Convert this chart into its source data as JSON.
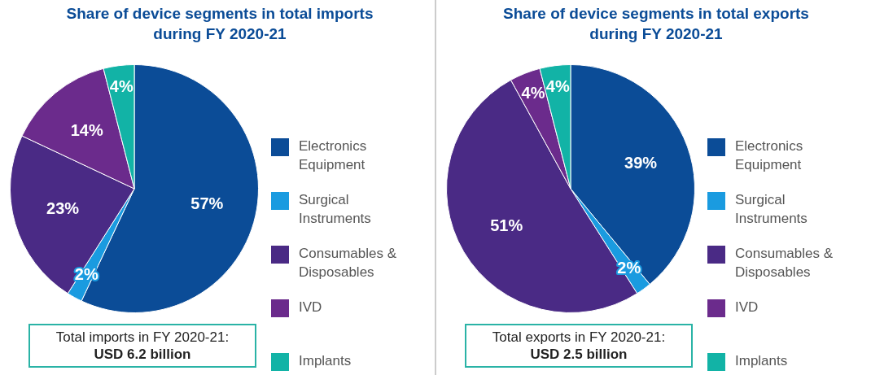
{
  "chart_data": [
    {
      "type": "pie",
      "title": "Share of device segments in total imports during FY 2020-21",
      "categories": [
        "Electronics Equipment",
        "Surgical Instruments",
        "Consumables & Disposables",
        "IVD",
        "Implants"
      ],
      "values": [
        57,
        2,
        23,
        14,
        4
      ],
      "colors": [
        "#0b4c97",
        "#1a9be0",
        "#4a2a85",
        "#6b2b8c",
        "#12b3a6"
      ],
      "value_labels": [
        "57%",
        "2%",
        "23%",
        "14%",
        "4%"
      ],
      "legend": "right",
      "annotations": [
        "Total imports in FY 2020-21:",
        "USD 6.2 billion"
      ]
    },
    {
      "type": "pie",
      "title": "Share of device segments in total exports during FY 2020-21",
      "categories": [
        "Electronics Equipment",
        "Surgical Instruments",
        "Consumables & Disposables",
        "IVD",
        "Implants"
      ],
      "values": [
        39,
        2,
        51,
        4,
        4
      ],
      "colors": [
        "#0b4c97",
        "#1a9be0",
        "#4a2a85",
        "#6b2b8c",
        "#12b3a6"
      ],
      "value_labels": [
        "39%",
        "2%",
        "51%",
        "4%",
        "4%"
      ],
      "legend": "right",
      "annotations": [
        "Total exports in FY 2020-21:",
        "USD 2.5 billion"
      ]
    }
  ]
}
